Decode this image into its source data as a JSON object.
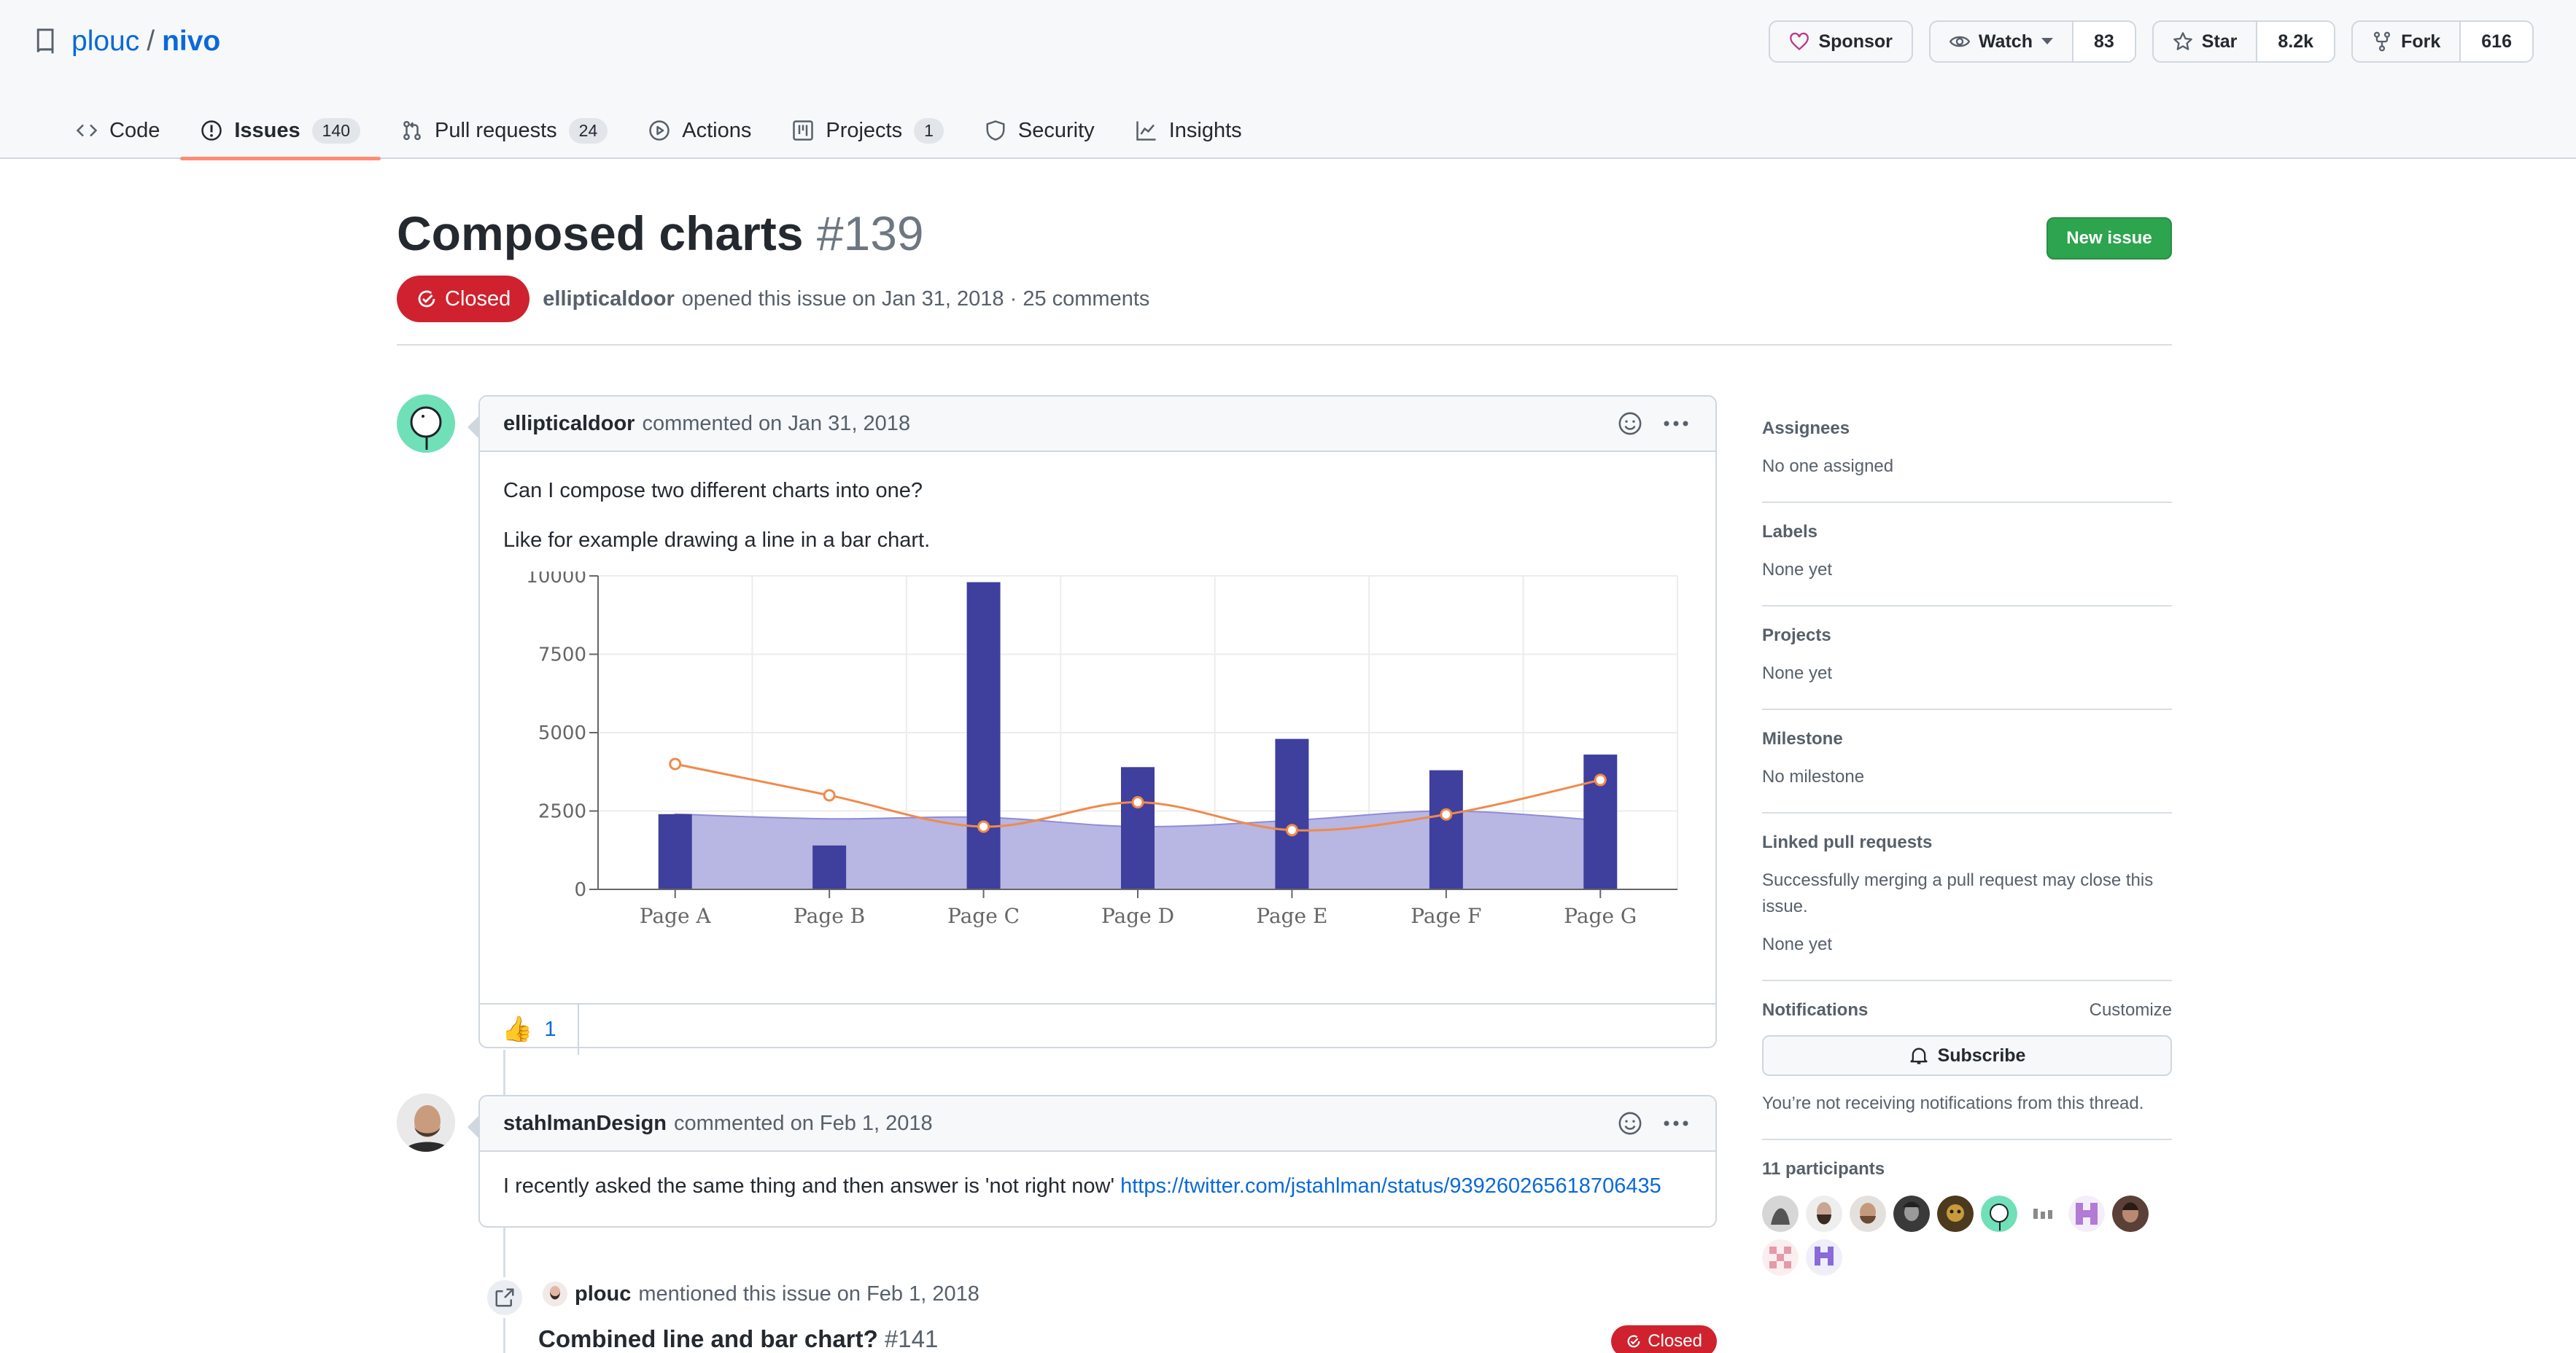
{
  "repo": {
    "owner": "plouc",
    "name": "nivo"
  },
  "actions": {
    "sponsor_label": "Sponsor",
    "watch_label": "Watch",
    "watch_count": "83",
    "star_label": "Star",
    "star_count": "8.2k",
    "fork_label": "Fork",
    "fork_count": "616"
  },
  "tabs": [
    {
      "label": "Code",
      "icon": "code-icon"
    },
    {
      "label": "Issues",
      "icon": "issue-icon",
      "counter": "140"
    },
    {
      "label": "Pull requests",
      "icon": "pull-request-icon",
      "counter": "24"
    },
    {
      "label": "Actions",
      "icon": "play-icon"
    },
    {
      "label": "Projects",
      "icon": "project-icon",
      "counter": "1"
    },
    {
      "label": "Security",
      "icon": "shield-icon"
    },
    {
      "label": "Insights",
      "icon": "graph-icon"
    }
  ],
  "issue": {
    "title": "Composed charts",
    "number": "#139",
    "state": "Closed",
    "author": "ellipticaldoor",
    "opened_text": "opened this issue on Jan 31, 2018 · 25 comments",
    "new_issue_label": "New issue"
  },
  "comments": [
    {
      "author": "ellipticaldoor",
      "meta": "commented on Jan 31, 2018",
      "body": [
        "Can I compose two different charts into one?",
        "Like for example drawing a line in a bar chart."
      ],
      "reaction_emoji": "👍",
      "reaction_count": "1"
    },
    {
      "author": "stahlmanDesign",
      "meta": "commented on Feb 1, 2018",
      "body_text": "I recently asked the same thing and then answer is 'not right now'",
      "link": "https://twitter.com/jstahlman/status/939260265618706435"
    }
  ],
  "xref": {
    "author": "plouc",
    "text": "mentioned this issue on Feb 1, 2018",
    "title": "Combined line and bar chart?",
    "number": "#141",
    "state": "Closed"
  },
  "sidebar": {
    "assignees_title": "Assignees",
    "assignees_value": "No one assigned",
    "labels_title": "Labels",
    "labels_value": "None yet",
    "projects_title": "Projects",
    "projects_value": "None yet",
    "milestone_title": "Milestone",
    "milestone_value": "No milestone",
    "linked_title": "Linked pull requests",
    "linked_desc": "Successfully merging a pull request may close this issue.",
    "linked_value": "None yet",
    "notifications_title": "Notifications",
    "customize_label": "Customize",
    "subscribe_label": "Subscribe",
    "notifications_desc": "You’re not receiving notifications from this thread.",
    "participants_title": "11 participants"
  },
  "colors": {
    "bar": "#3f3f9e",
    "area": "#b4b2e2",
    "line": "#f08a4b",
    "closed": "#cf222e",
    "accent": "#0969da"
  },
  "chart_data": {
    "type": "bar",
    "categories": [
      "Page A",
      "Page B",
      "Page C",
      "Page D",
      "Page E",
      "Page F",
      "Page G"
    ],
    "ylim": [
      0,
      10000
    ],
    "yticks": [
      "0",
      "2500",
      "5000",
      "7500",
      "10000"
    ],
    "series": [
      {
        "type": "bar",
        "values": [
          2400,
          1400,
          9800,
          3900,
          4800,
          3800,
          4300
        ]
      },
      {
        "type": "area",
        "values": [
          2400,
          2250,
          2300,
          2000,
          2200,
          2500,
          2200
        ]
      },
      {
        "type": "line",
        "values": [
          4000,
          3000,
          2000,
          2780,
          1890,
          2390,
          3490
        ]
      }
    ],
    "grid": true
  }
}
